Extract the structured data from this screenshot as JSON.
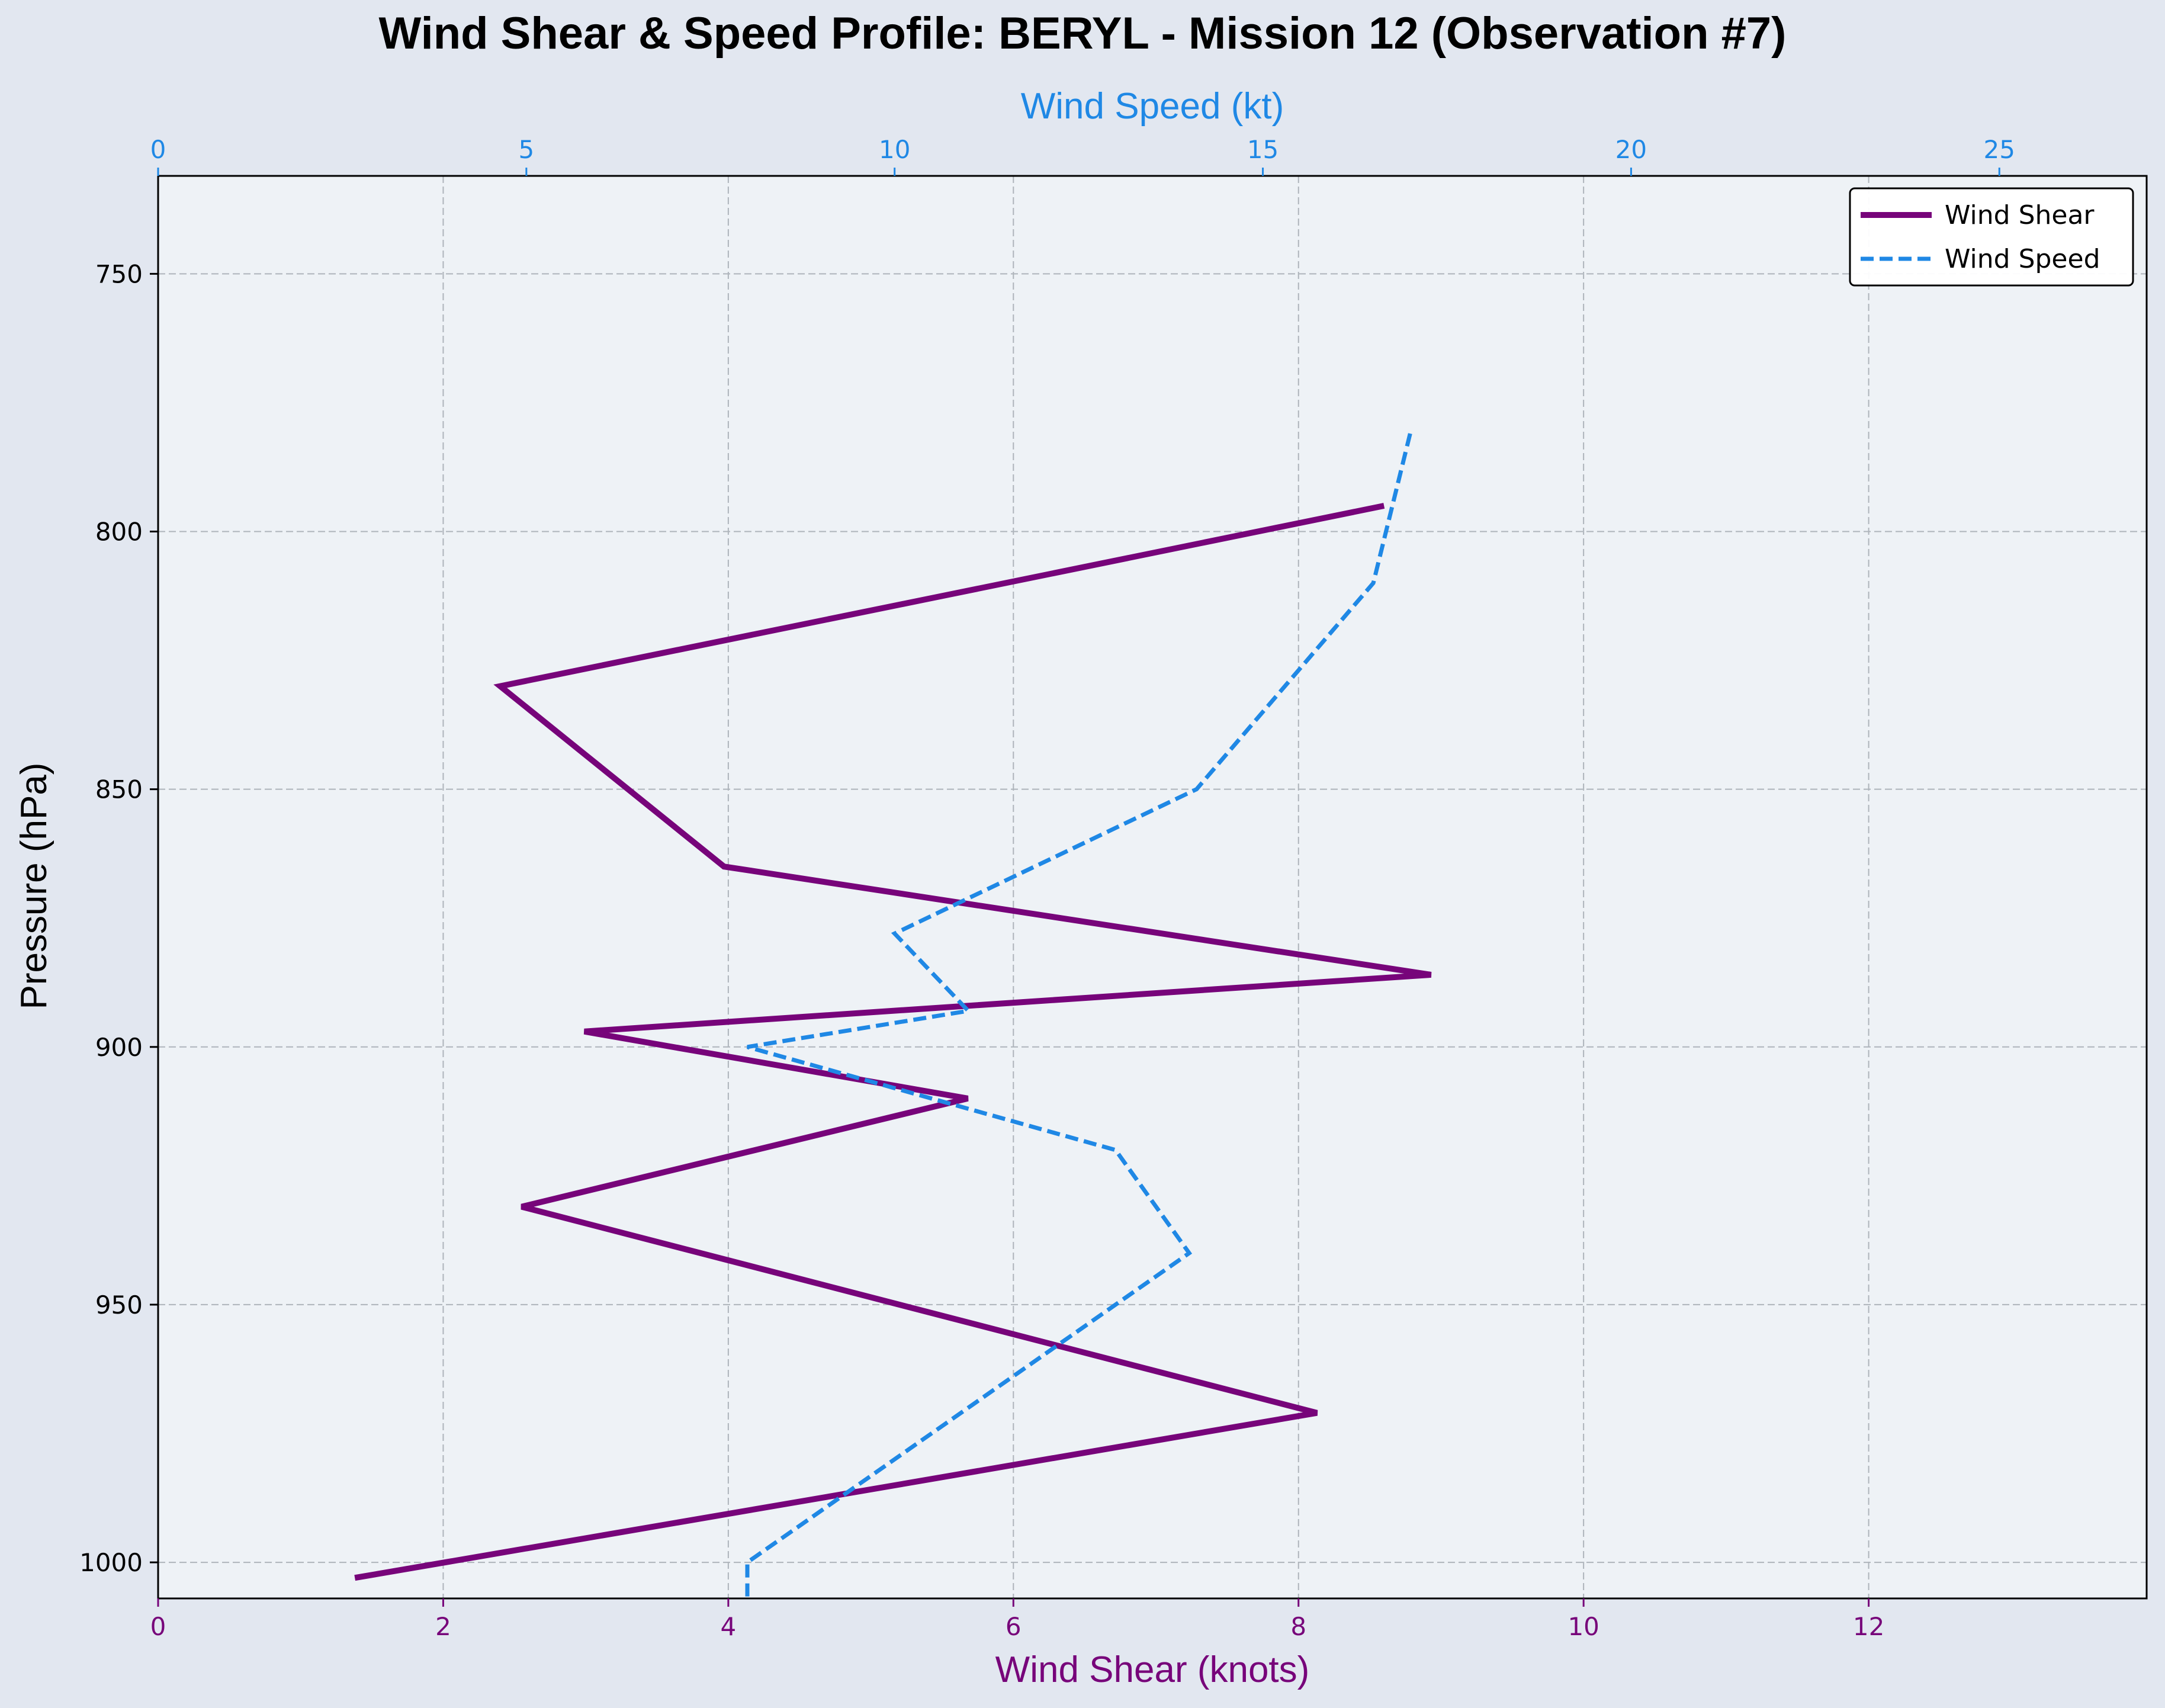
{
  "colors": {
    "figure_bg": "#e2e7f0",
    "plot_bg": "#eef2f6",
    "shear": "#77047a",
    "speed": "#1f88e5",
    "grid": "#aeb4bb",
    "text": "#000000"
  },
  "chart_data": {
    "type": "line",
    "title": "Wind Shear & Speed Profile: BERYL - Mission 12 (Observation #7)",
    "ylabel": "Pressure (hPa)",
    "y_inverted": true,
    "ylim": [
      1007,
      731
    ],
    "yticks": [
      750,
      800,
      850,
      900,
      950,
      1000
    ],
    "grid": true,
    "legend_position": "top-right",
    "x_bottom": {
      "label": "Wind Shear (knots)",
      "lim": [
        0,
        13.95
      ],
      "ticks": [
        0,
        2,
        4,
        6,
        8,
        10,
        12
      ]
    },
    "x_top": {
      "label": "Wind Speed (kt)",
      "lim": [
        0,
        27.0
      ],
      "ticks": [
        0,
        5,
        10,
        15,
        20,
        25
      ]
    },
    "series": [
      {
        "name": "Wind Shear",
        "axis": "bottom",
        "style": "solid",
        "points": [
          {
            "x": 8.6,
            "y": 795
          },
          {
            "x": 2.4,
            "y": 830
          },
          {
            "x": 3.97,
            "y": 865
          },
          {
            "x": 8.93,
            "y": 886
          },
          {
            "x": 2.99,
            "y": 897
          },
          {
            "x": 5.68,
            "y": 910
          },
          {
            "x": 2.55,
            "y": 931
          },
          {
            "x": 8.13,
            "y": 971
          },
          {
            "x": 1.38,
            "y": 1003
          }
        ]
      },
      {
        "name": "Wind Speed",
        "axis": "top",
        "style": "dashed",
        "points": [
          {
            "x": 17.0,
            "y": 781
          },
          {
            "x": 16.5,
            "y": 810
          },
          {
            "x": 14.1,
            "y": 850
          },
          {
            "x": 10.0,
            "y": 878
          },
          {
            "x": 11.0,
            "y": 893
          },
          {
            "x": 8.0,
            "y": 900
          },
          {
            "x": 13.0,
            "y": 920
          },
          {
            "x": 14.0,
            "y": 940
          },
          {
            "x": 8.0,
            "y": 1000
          },
          {
            "x": 8.0,
            "y": 1010
          }
        ]
      }
    ]
  }
}
